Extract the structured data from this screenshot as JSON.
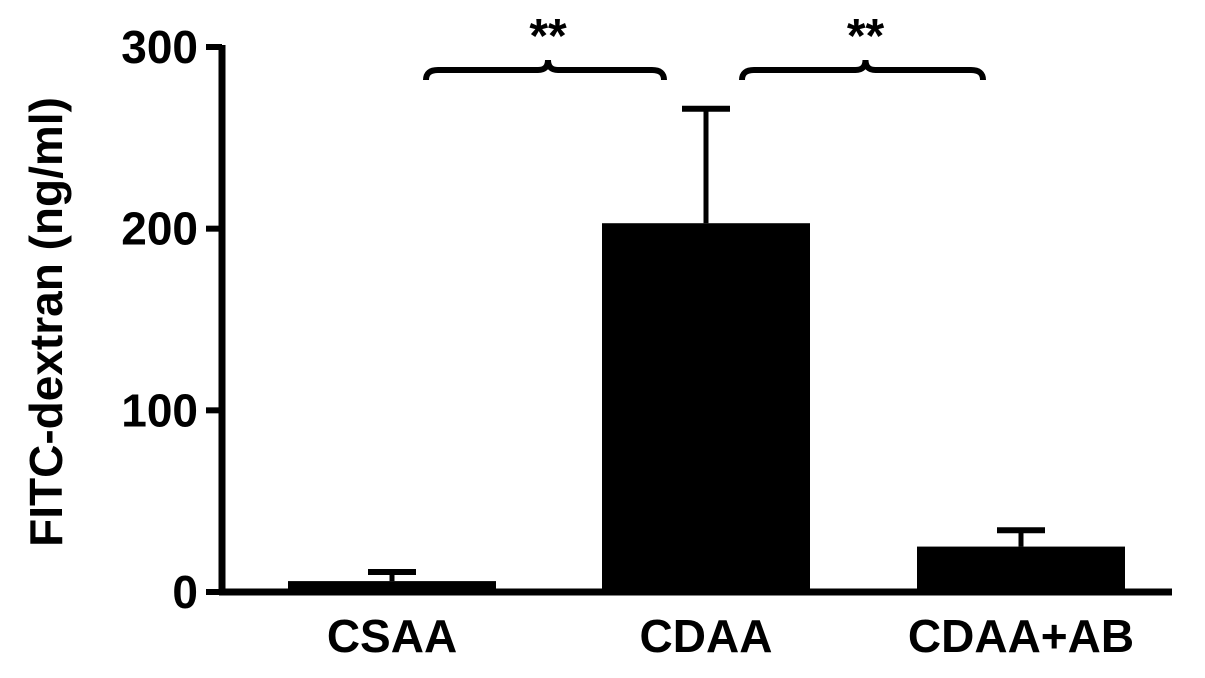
{
  "chart_data": {
    "type": "bar",
    "title": "",
    "xlabel": "",
    "ylabel": "FITC-dextran (ng/ml)",
    "ylim": [
      0,
      300
    ],
    "yticks": [
      0,
      100,
      200,
      300
    ],
    "categories": [
      "CSAA",
      "CDAA",
      "CDAA+AB"
    ],
    "values": [
      6,
      203,
      25
    ],
    "error": [
      5,
      63,
      9
    ],
    "bar_color": "#000000",
    "grid": false,
    "legend": "none",
    "significance": [
      {
        "from": 0,
        "to": 1,
        "label": "**"
      },
      {
        "from": 1,
        "to": 2,
        "label": "**"
      }
    ]
  }
}
